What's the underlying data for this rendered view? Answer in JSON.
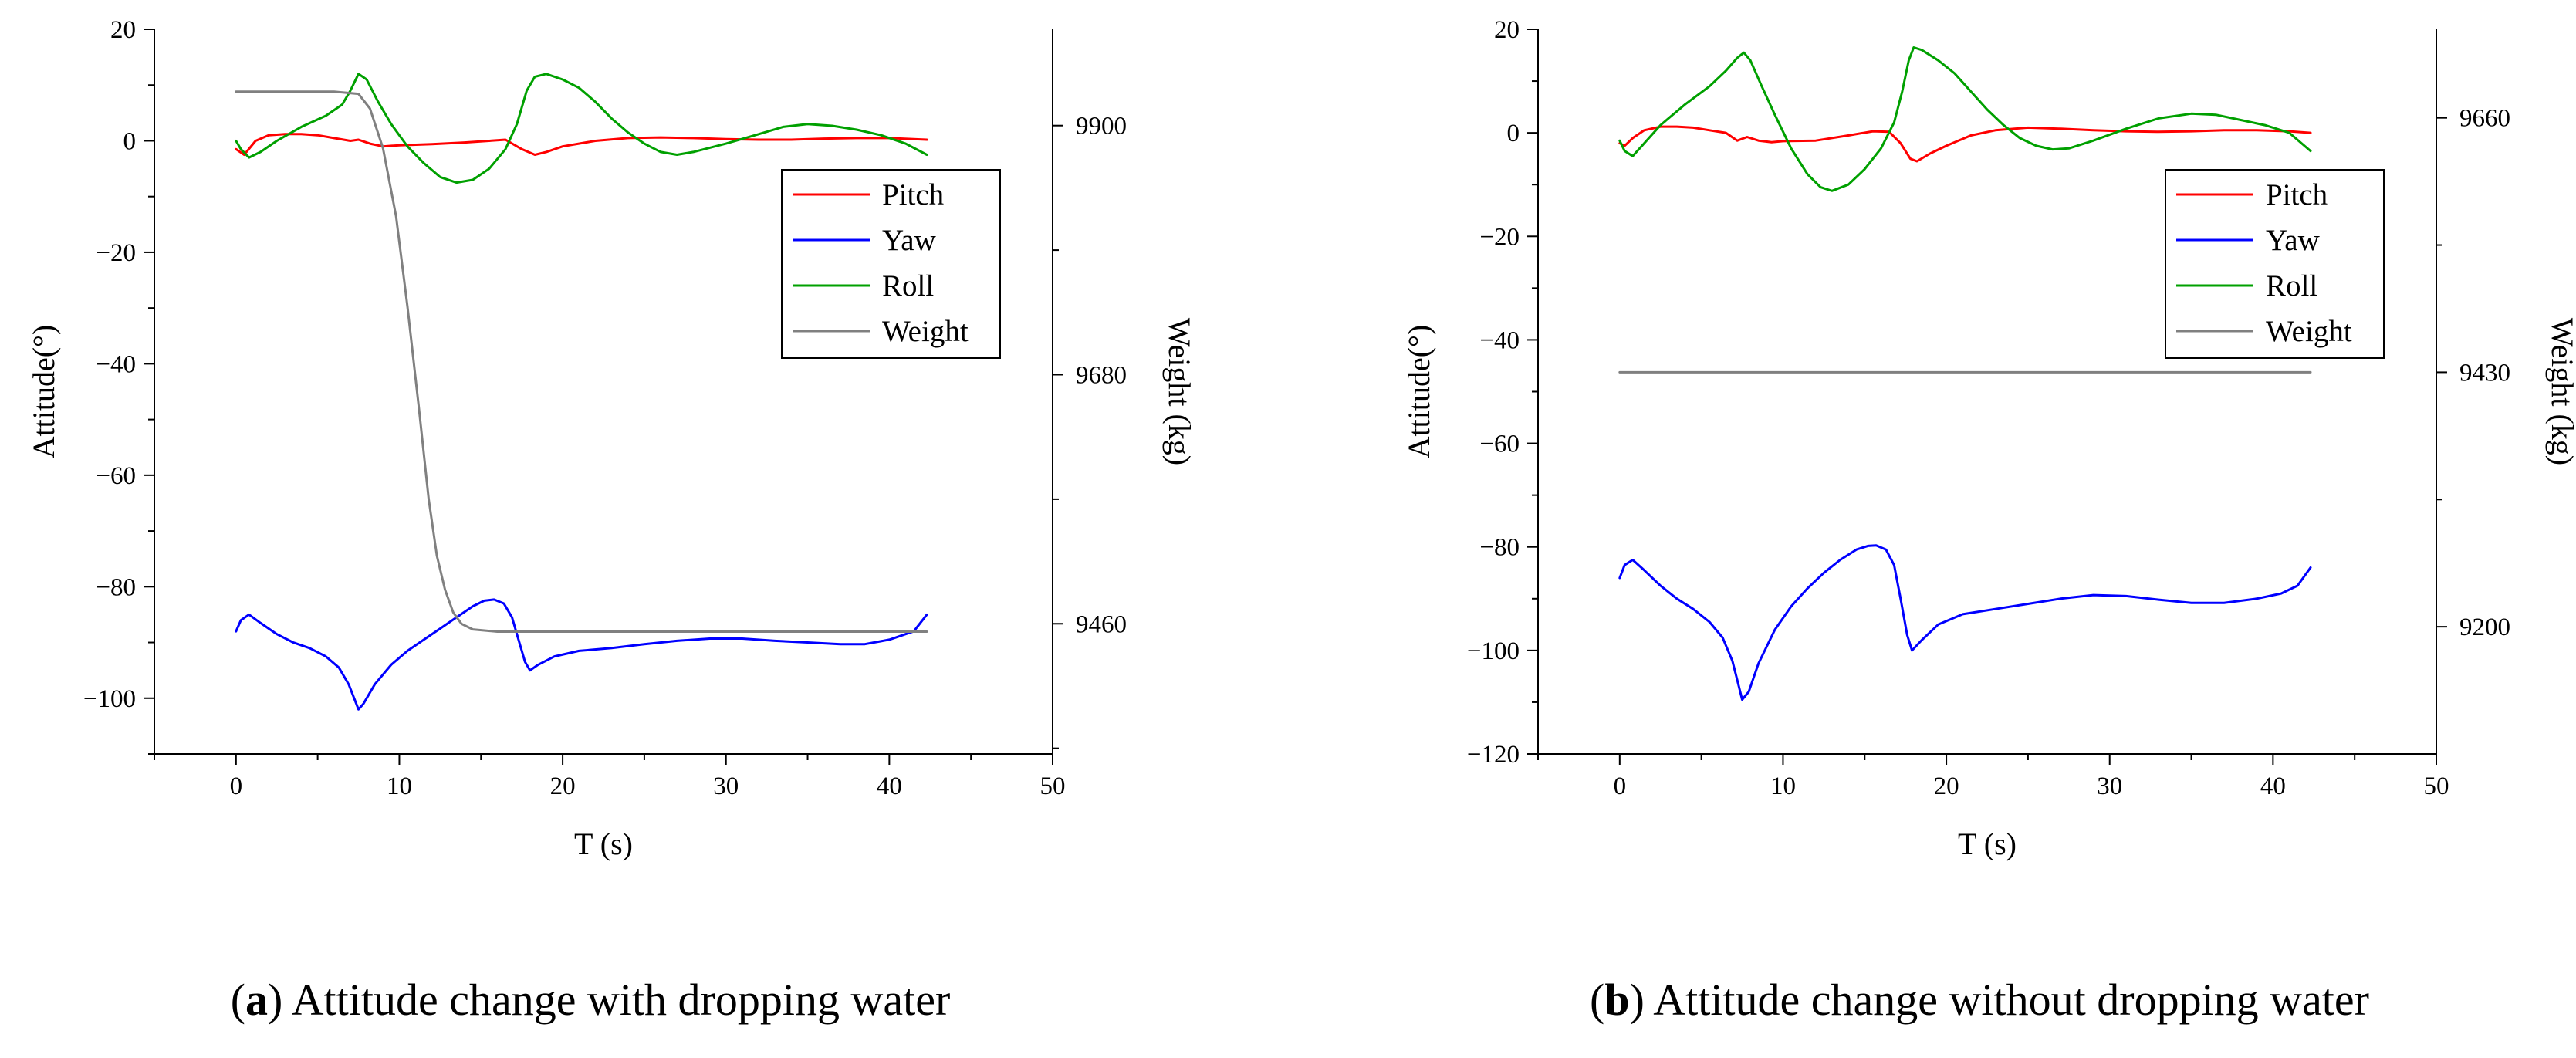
{
  "chart_data": [
    {
      "type": "line",
      "caption": {
        "prefix": "(",
        "letter": "a",
        "text": ") Attitude change with dropping water"
      },
      "xlabel": "T (s)",
      "ylabel": "Attitude(°)",
      "y2label": "Weight (kg)",
      "xlim": [
        -5,
        50
      ],
      "xticks": [
        0,
        10,
        20,
        30,
        40,
        50
      ],
      "ylim": [
        -110,
        20
      ],
      "yticks": [
        20,
        0,
        -20,
        -40,
        -60,
        -80,
        -100
      ],
      "y2lim": [
        9345,
        9985
      ],
      "y2ticks": [
        9900,
        9680,
        9460
      ],
      "legend": {
        "position": "center-right",
        "entries": [
          "Pitch",
          "Yaw",
          "Roll",
          "Weight"
        ]
      },
      "series": [
        {
          "name": "Pitch",
          "axis": "y",
          "color": "#ff0000",
          "points": [
            [
              0,
              -1.5
            ],
            [
              0.5,
              -2.5
            ],
            [
              1.2,
              0
            ],
            [
              2,
              1
            ],
            [
              3,
              1.2
            ],
            [
              4,
              1.2
            ],
            [
              5,
              1
            ],
            [
              6,
              0.5
            ],
            [
              7,
              0
            ],
            [
              7.5,
              0.2
            ],
            [
              8.2,
              -0.5
            ],
            [
              9,
              -1
            ],
            [
              10,
              -0.8
            ],
            [
              12,
              -0.6
            ],
            [
              14,
              -0.3
            ],
            [
              15.5,
              0
            ],
            [
              16.5,
              0.2
            ],
            [
              17.5,
              -1.5
            ],
            [
              18.3,
              -2.5
            ],
            [
              19,
              -2
            ],
            [
              20,
              -1
            ],
            [
              22,
              0
            ],
            [
              24,
              0.5
            ],
            [
              26,
              0.6
            ],
            [
              28,
              0.5
            ],
            [
              30,
              0.3
            ],
            [
              32,
              0.2
            ],
            [
              34,
              0.2
            ],
            [
              36,
              0.4
            ],
            [
              38,
              0.5
            ],
            [
              40,
              0.5
            ],
            [
              42.3,
              0.2
            ]
          ]
        },
        {
          "name": "Yaw",
          "axis": "y",
          "color": "#0000ff",
          "points": [
            [
              0,
              -88
            ],
            [
              0.3,
              -86
            ],
            [
              0.8,
              -85
            ],
            [
              1.5,
              -86.5
            ],
            [
              2.5,
              -88.5
            ],
            [
              3.5,
              -90
            ],
            [
              4.5,
              -91
            ],
            [
              5.5,
              -92.5
            ],
            [
              6.3,
              -94.5
            ],
            [
              6.9,
              -97.5
            ],
            [
              7.3,
              -100.5
            ],
            [
              7.5,
              -102
            ],
            [
              7.8,
              -101
            ],
            [
              8.5,
              -97.5
            ],
            [
              9.5,
              -94
            ],
            [
              10.5,
              -91.5
            ],
            [
              11.5,
              -89.5
            ],
            [
              12.5,
              -87.5
            ],
            [
              13.5,
              -85.5
            ],
            [
              14.5,
              -83.5
            ],
            [
              15.2,
              -82.5
            ],
            [
              15.8,
              -82.3
            ],
            [
              16.4,
              -83
            ],
            [
              16.9,
              -85.5
            ],
            [
              17.3,
              -89.5
            ],
            [
              17.7,
              -93.5
            ],
            [
              18,
              -95
            ],
            [
              18.5,
              -94
            ],
            [
              19.5,
              -92.5
            ],
            [
              21,
              -91.5
            ],
            [
              23,
              -91
            ],
            [
              25,
              -90.3
            ],
            [
              27,
              -89.7
            ],
            [
              29,
              -89.3
            ],
            [
              31,
              -89.3
            ],
            [
              33,
              -89.7
            ],
            [
              35,
              -90
            ],
            [
              37,
              -90.3
            ],
            [
              38.5,
              -90.3
            ],
            [
              40,
              -89.5
            ],
            [
              41.5,
              -88
            ],
            [
              42.3,
              -85
            ]
          ]
        },
        {
          "name": "Roll",
          "axis": "y",
          "color": "#00a000",
          "points": [
            [
              0,
              0
            ],
            [
              0.3,
              -1.5
            ],
            [
              0.8,
              -3
            ],
            [
              1.5,
              -2
            ],
            [
              2.5,
              0
            ],
            [
              4,
              2.5
            ],
            [
              5.5,
              4.5
            ],
            [
              6.5,
              6.5
            ],
            [
              7,
              9
            ],
            [
              7.5,
              12
            ],
            [
              8,
              11
            ],
            [
              8.7,
              7
            ],
            [
              9.5,
              3
            ],
            [
              10.5,
              -1
            ],
            [
              11.5,
              -4
            ],
            [
              12.5,
              -6.5
            ],
            [
              13.5,
              -7.5
            ],
            [
              14.5,
              -7
            ],
            [
              15.5,
              -5
            ],
            [
              16.5,
              -1.5
            ],
            [
              17.2,
              3
            ],
            [
              17.8,
              9
            ],
            [
              18.3,
              11.5
            ],
            [
              19,
              12
            ],
            [
              20,
              11
            ],
            [
              21,
              9.5
            ],
            [
              22,
              7
            ],
            [
              23,
              4
            ],
            [
              24,
              1.5
            ],
            [
              25,
              -0.5
            ],
            [
              26,
              -2
            ],
            [
              27,
              -2.5
            ],
            [
              28,
              -2
            ],
            [
              30,
              -0.5
            ],
            [
              32,
              1.2
            ],
            [
              33.5,
              2.5
            ],
            [
              35,
              3
            ],
            [
              36.5,
              2.7
            ],
            [
              38,
              2
            ],
            [
              39.5,
              1
            ],
            [
              41,
              -0.5
            ],
            [
              42.3,
              -2.5
            ]
          ]
        },
        {
          "name": "Weight",
          "axis": "y2",
          "color": "#808080",
          "points": [
            [
              0,
              9930
            ],
            [
              6,
              9930
            ],
            [
              7.5,
              9928
            ],
            [
              8.2,
              9915
            ],
            [
              9,
              9880
            ],
            [
              9.8,
              9820
            ],
            [
              10.5,
              9740
            ],
            [
              11.2,
              9650
            ],
            [
              11.8,
              9570
            ],
            [
              12.3,
              9520
            ],
            [
              12.8,
              9490
            ],
            [
              13.3,
              9470
            ],
            [
              13.8,
              9460
            ],
            [
              14.5,
              9455
            ],
            [
              16,
              9453
            ],
            [
              20,
              9453
            ],
            [
              30,
              9453
            ],
            [
              42.3,
              9453
            ]
          ]
        }
      ]
    },
    {
      "type": "line",
      "caption": {
        "prefix": "(",
        "letter": "b",
        "text": ") Attitude change without dropping water"
      },
      "xlabel": "T (s)",
      "ylabel": "Attitude(°)",
      "y2label": "Weight (kg)",
      "xlim": [
        -5,
        50
      ],
      "xticks": [
        0,
        10,
        20,
        30,
        40,
        50
      ],
      "ylim": [
        -120,
        20
      ],
      "yticks": [
        20,
        0,
        -20,
        -40,
        -60,
        -80,
        -100,
        -120
      ],
      "y2lim": [
        9085,
        9740
      ],
      "y2ticks": [
        9660,
        9430,
        9200
      ],
      "legend": {
        "position": "center-right",
        "entries": [
          "Pitch",
          "Yaw",
          "Roll",
          "Weight"
        ]
      },
      "series": [
        {
          "name": "Pitch",
          "axis": "y",
          "color": "#ff0000",
          "points": [
            [
              0,
              -2
            ],
            [
              0.3,
              -2.5
            ],
            [
              0.8,
              -1
            ],
            [
              1.5,
              0.5
            ],
            [
              2.5,
              1.2
            ],
            [
              3.5,
              1.2
            ],
            [
              4.5,
              1
            ],
            [
              5.5,
              0.5
            ],
            [
              6.5,
              0
            ],
            [
              7.2,
              -1.5
            ],
            [
              7.8,
              -0.8
            ],
            [
              8.5,
              -1.5
            ],
            [
              9.3,
              -1.8
            ],
            [
              10,
              -1.6
            ],
            [
              12,
              -1.5
            ],
            [
              14,
              -0.5
            ],
            [
              15.5,
              0.3
            ],
            [
              16.5,
              0.2
            ],
            [
              17.2,
              -2
            ],
            [
              17.8,
              -5
            ],
            [
              18.2,
              -5.5
            ],
            [
              19,
              -4
            ],
            [
              20,
              -2.5
            ],
            [
              21.5,
              -0.5
            ],
            [
              23,
              0.5
            ],
            [
              25,
              1
            ],
            [
              27,
              0.8
            ],
            [
              29,
              0.5
            ],
            [
              31,
              0.3
            ],
            [
              33,
              0.2
            ],
            [
              35,
              0.3
            ],
            [
              37,
              0.5
            ],
            [
              39,
              0.5
            ],
            [
              41,
              0.3
            ],
            [
              42.3,
              0
            ]
          ]
        },
        {
          "name": "Yaw",
          "axis": "y",
          "color": "#0000ff",
          "points": [
            [
              0,
              -86
            ],
            [
              0.3,
              -83.5
            ],
            [
              0.8,
              -82.5
            ],
            [
              1.5,
              -84.5
            ],
            [
              2.5,
              -87.5
            ],
            [
              3.5,
              -90
            ],
            [
              4.5,
              -92
            ],
            [
              5.5,
              -94.5
            ],
            [
              6.3,
              -97.5
            ],
            [
              6.9,
              -102
            ],
            [
              7.3,
              -107
            ],
            [
              7.5,
              -109.5
            ],
            [
              7.9,
              -108
            ],
            [
              8.5,
              -102.5
            ],
            [
              9.5,
              -96
            ],
            [
              10.5,
              -91.5
            ],
            [
              11.5,
              -88
            ],
            [
              12.5,
              -85
            ],
            [
              13.5,
              -82.5
            ],
            [
              14.5,
              -80.5
            ],
            [
              15.2,
              -79.8
            ],
            [
              15.7,
              -79.7
            ],
            [
              16.3,
              -80.5
            ],
            [
              16.8,
              -83.5
            ],
            [
              17.2,
              -90
            ],
            [
              17.6,
              -97
            ],
            [
              17.9,
              -100
            ],
            [
              18.5,
              -98
            ],
            [
              19.5,
              -95
            ],
            [
              21,
              -93
            ],
            [
              23,
              -92
            ],
            [
              25,
              -91
            ],
            [
              27,
              -90
            ],
            [
              29,
              -89.3
            ],
            [
              31,
              -89.5
            ],
            [
              33,
              -90.2
            ],
            [
              35,
              -90.8
            ],
            [
              37,
              -90.8
            ],
            [
              39,
              -90
            ],
            [
              40.5,
              -89
            ],
            [
              41.5,
              -87.5
            ],
            [
              42.3,
              -84
            ]
          ]
        },
        {
          "name": "Roll",
          "axis": "y",
          "color": "#00a000",
          "points": [
            [
              0,
              -1.5
            ],
            [
              0.3,
              -3.5
            ],
            [
              0.8,
              -4.5
            ],
            [
              1.5,
              -2
            ],
            [
              2.5,
              1.5
            ],
            [
              4,
              5.5
            ],
            [
              5.5,
              9
            ],
            [
              6.5,
              12
            ],
            [
              7.2,
              14.5
            ],
            [
              7.6,
              15.5
            ],
            [
              8,
              14
            ],
            [
              8.7,
              9
            ],
            [
              9.5,
              3.5
            ],
            [
              10.5,
              -3
            ],
            [
              11.5,
              -8
            ],
            [
              12.3,
              -10.5
            ],
            [
              13,
              -11.2
            ],
            [
              14,
              -10
            ],
            [
              15,
              -7
            ],
            [
              16,
              -3
            ],
            [
              16.8,
              2
            ],
            [
              17.3,
              8
            ],
            [
              17.7,
              14
            ],
            [
              18,
              16.5
            ],
            [
              18.5,
              16
            ],
            [
              19.5,
              14
            ],
            [
              20.5,
              11.5
            ],
            [
              21.5,
              8
            ],
            [
              22.5,
              4.5
            ],
            [
              23.5,
              1.5
            ],
            [
              24.5,
              -1
            ],
            [
              25.5,
              -2.5
            ],
            [
              26.5,
              -3.2
            ],
            [
              27.5,
              -3
            ],
            [
              29,
              -1.5
            ],
            [
              31,
              0.8
            ],
            [
              33,
              2.8
            ],
            [
              35,
              3.7
            ],
            [
              36.5,
              3.5
            ],
            [
              38,
              2.5
            ],
            [
              39.5,
              1.5
            ],
            [
              41,
              0
            ],
            [
              42.3,
              -3.5
            ]
          ]
        },
        {
          "name": "Weight",
          "axis": "y2",
          "color": "#808080",
          "points": [
            [
              0,
              9430
            ],
            [
              42.3,
              9430
            ]
          ]
        }
      ]
    }
  ]
}
